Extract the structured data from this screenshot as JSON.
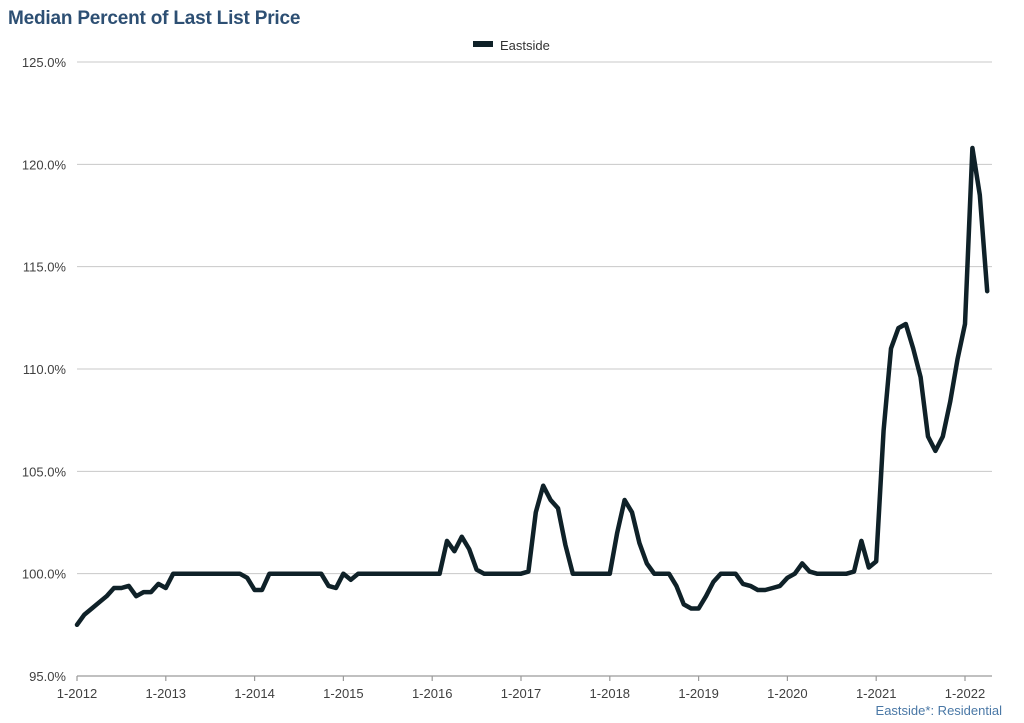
{
  "title": "Median Percent of Last List Price",
  "footer": "Eastside*: Residential",
  "chart_data": {
    "type": "line",
    "title": "Median Percent of Last List Price",
    "xlabel": "",
    "ylabel": "",
    "ylim": [
      95,
      125
    ],
    "y_ticks": [
      95,
      100,
      105,
      110,
      115,
      120,
      125
    ],
    "y_tick_labels": [
      "95.0%",
      "100.0%",
      "105.0%",
      "110.0%",
      "115.0%",
      "120.0%",
      "125.0%"
    ],
    "x_tick_labels": [
      "1-2012",
      "1-2013",
      "1-2014",
      "1-2015",
      "1-2016",
      "1-2017",
      "1-2018",
      "1-2019",
      "1-2020",
      "1-2021",
      "1-2022"
    ],
    "x_start": "2012-01",
    "x_end": "2022-04",
    "legend": "top-center",
    "grid": "horizontal",
    "series": [
      {
        "name": "Eastside",
        "color": "#0f2128",
        "values": [
          97.5,
          98.0,
          98.3,
          98.6,
          98.9,
          99.3,
          99.3,
          99.4,
          98.9,
          99.1,
          99.1,
          99.5,
          99.3,
          100.0,
          100.0,
          100.0,
          100.0,
          100.0,
          100.0,
          100.0,
          100.0,
          100.0,
          100.0,
          99.8,
          99.2,
          99.2,
          100.0,
          100.0,
          100.0,
          100.0,
          100.0,
          100.0,
          100.0,
          100.0,
          99.4,
          99.3,
          100.0,
          99.7,
          100.0,
          100.0,
          100.0,
          100.0,
          100.0,
          100.0,
          100.0,
          100.0,
          100.0,
          100.0,
          100.0,
          100.0,
          101.6,
          101.1,
          101.8,
          101.2,
          100.2,
          100.0,
          100.0,
          100.0,
          100.0,
          100.0,
          100.0,
          100.1,
          103.0,
          104.3,
          103.6,
          103.2,
          101.4,
          100.0,
          100.0,
          100.0,
          100.0,
          100.0,
          100.0,
          102.0,
          103.6,
          103.0,
          101.5,
          100.5,
          100.0,
          100.0,
          100.0,
          99.4,
          98.5,
          98.3,
          98.3,
          98.9,
          99.6,
          100.0,
          100.0,
          100.0,
          99.5,
          99.4,
          99.2,
          99.2,
          99.3,
          99.4,
          99.8,
          100.0,
          100.5,
          100.1,
          100.0,
          100.0,
          100.0,
          100.0,
          100.0,
          100.1,
          101.6,
          100.3,
          100.6,
          107.0,
          111.0,
          112.0,
          112.2,
          111.0,
          109.6,
          106.7,
          106.0,
          106.7,
          108.4,
          110.5,
          112.2,
          120.8,
          118.5,
          113.8
        ]
      }
    ]
  }
}
